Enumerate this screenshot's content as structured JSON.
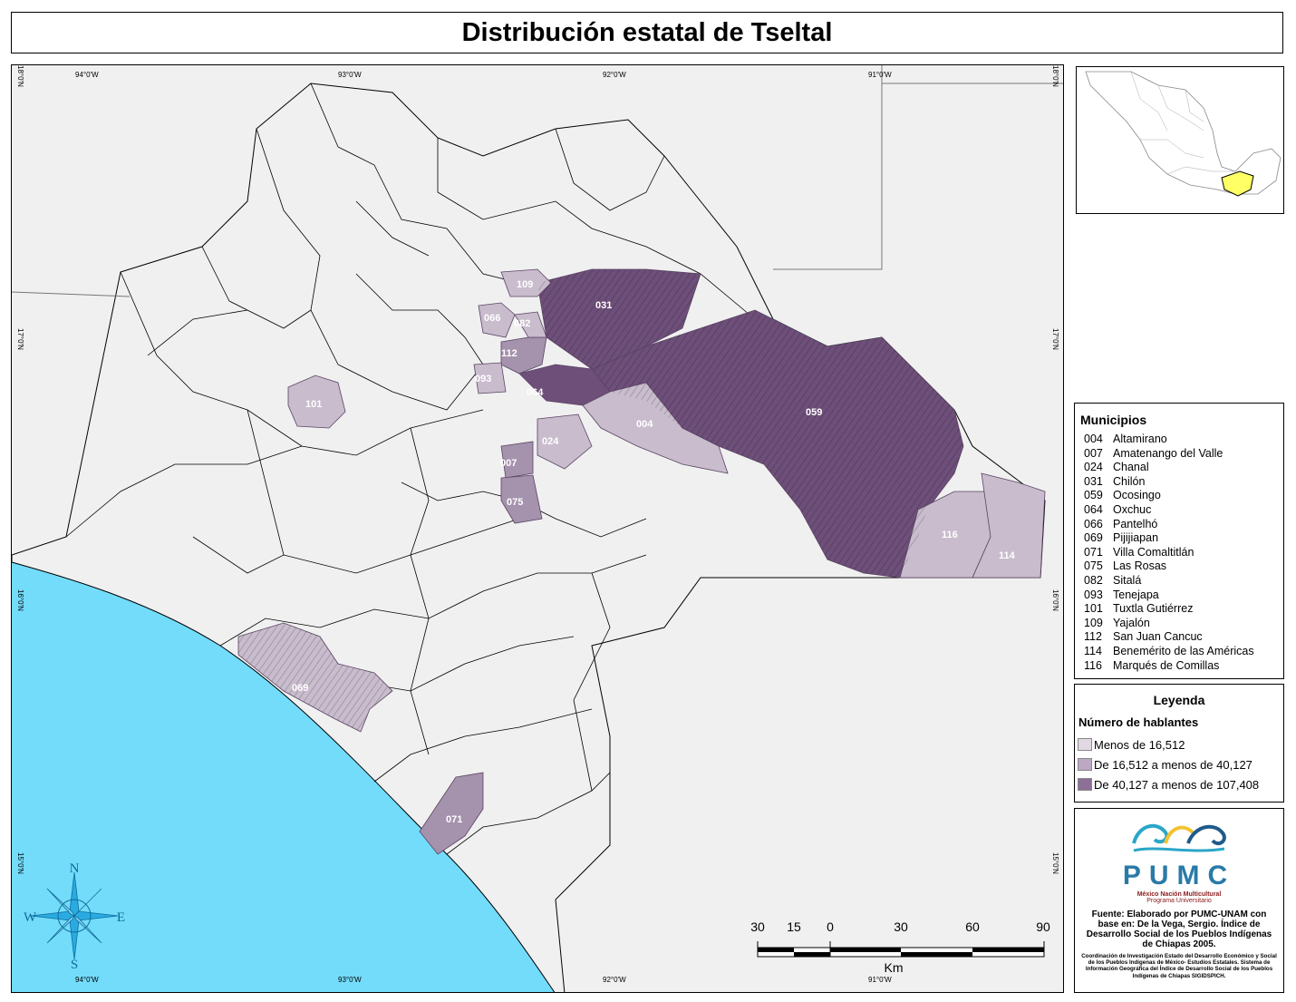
{
  "title": "Distribución estatal de Tseltal",
  "graticule": {
    "top": [
      "94°0'W",
      "93°0'W",
      "92°0'W",
      "91°0'W"
    ],
    "bottom": [
      "94°0'W",
      "93°0'W",
      "92°0'W",
      "91°0'W"
    ],
    "left": [
      "18°0'N",
      "17°0'N",
      "16°0'N",
      "15°0'N"
    ],
    "right": [
      "18°0'N",
      "17°0'N",
      "16°0'N",
      "15°0'N"
    ]
  },
  "map_labels": [
    {
      "code": "109",
      "class": 1
    },
    {
      "code": "031",
      "class": 3
    },
    {
      "code": "066",
      "class": 1
    },
    {
      "code": "082",
      "class": 1
    },
    {
      "code": "112",
      "class": 2
    },
    {
      "code": "093",
      "class": 1
    },
    {
      "code": "064",
      "class": 3
    },
    {
      "code": "101",
      "class": 1
    },
    {
      "code": "004",
      "class": 1
    },
    {
      "code": "059",
      "class": 3
    },
    {
      "code": "024",
      "class": 1
    },
    {
      "code": "007",
      "class": 2
    },
    {
      "code": "075",
      "class": 2
    },
    {
      "code": "116",
      "class": 1
    },
    {
      "code": "114",
      "class": 1
    },
    {
      "code": "069",
      "class": 1
    },
    {
      "code": "071",
      "class": 2
    }
  ],
  "municipios": {
    "heading": "Municipios",
    "items": [
      {
        "code": "004",
        "name": "Altamirano"
      },
      {
        "code": "007",
        "name": "Amatenango del Valle"
      },
      {
        "code": "024",
        "name": "Chanal"
      },
      {
        "code": "031",
        "name": "Chilón"
      },
      {
        "code": "059",
        "name": "Ocosingo"
      },
      {
        "code": "064",
        "name": "Oxchuc"
      },
      {
        "code": "066",
        "name": "Pantelhó"
      },
      {
        "code": "069",
        "name": "Pijijiapan"
      },
      {
        "code": "071",
        "name": "Villa Comaltitlán"
      },
      {
        "code": "075",
        "name": "Las Rosas"
      },
      {
        "code": "082",
        "name": "Sitalá"
      },
      {
        "code": "093",
        "name": "Tenejapa"
      },
      {
        "code": "101",
        "name": "Tuxtla Gutiérrez"
      },
      {
        "code": "109",
        "name": "Yajalón"
      },
      {
        "code": "112",
        "name": "San Juan Cancuc"
      },
      {
        "code": "114",
        "name": "Benemérito de las Américas"
      },
      {
        "code": "116",
        "name": "Marqués de Comillas"
      }
    ]
  },
  "legend": {
    "heading": "Leyenda",
    "subheading": "Número de hablantes",
    "classes": [
      {
        "label": "Menos de 16,512",
        "color": "#e2d8e3"
      },
      {
        "label": "De 16,512 a menos de 40,127",
        "color": "#bca8c3"
      },
      {
        "label": "De 40,127 a menos de 107,408",
        "color": "#8e6f98"
      }
    ]
  },
  "credits": {
    "logo_text": "PUMC",
    "logo_sub1": "México Nación Multicultural",
    "logo_sub2": "Programa Universitario",
    "fuente": "Fuente: Elaborado por PUMC-UNAM con base en: De la Vega, Sergio. Índice de Desarrollo Social de los Pueblos Indígenas de Chiapas 2005.",
    "note": "Coordinación de Investigación Estado del Desarrollo Económico y Social de los Pueblos Indígenas de México- Estudios Estatales. Sistema de Información Geográfica del Índice de Desarrollo Social de los Pueblos Indígenas de Chiapas SIGIDSPICH."
  },
  "compass": {
    "n": "N",
    "s": "S",
    "e": "E",
    "w": "W"
  },
  "scale": {
    "ticks": [
      "30",
      "15",
      "0",
      "30",
      "60",
      "90"
    ],
    "unit": "Km"
  },
  "colors": {
    "ocean": "#73dcfb",
    "land": "#f0f0f0",
    "class1": "#c9bccd",
    "class2": "#a592ad",
    "class3": "#6e4f7a"
  }
}
